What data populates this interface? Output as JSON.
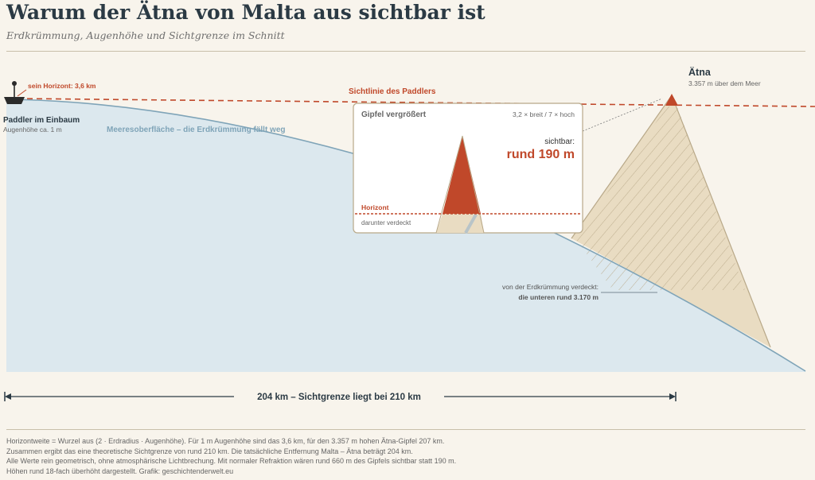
{
  "title": "Warum der Ätna von Malta aus sichtbar ist",
  "subtitle": "Erdkrümmung, Augenhöhe und Sichtgrenze im Schnitt",
  "colors": {
    "sea": "#dce8ee",
    "sea_edge": "#7fa4b8",
    "accent": "#c0482a",
    "mountain_fill": "#e9dcc2",
    "mountain_edge": "#b8a888",
    "hatch": "#b8a888",
    "text_dark": "#2b3a44",
    "text_muted": "#666666"
  },
  "observer": {
    "name": "Paddler im Einbaum",
    "height_note": "Augenhöhe ca. 1 m",
    "horizon_label": "sein Horizont: 3,6 km",
    "icon": "boat-icon"
  },
  "sea_label": "Meeresoberfläche – die Erdkrümmung fällt weg",
  "sightline_label": "Sichtlinie des Paddlers",
  "mountain": {
    "name": "Ätna",
    "elevation_note": "3.357 m über dem Meer",
    "hidden_label": "von der Erdkrümmung verdeckt:",
    "hidden_value": "die unteren rund 3.170 m"
  },
  "inset": {
    "title": "Gipfel vergrößert",
    "scale_note": "3,2 × breit / 7 × hoch",
    "visible_label": "sichtbar:",
    "visible_value": "rund 190 m",
    "horizon_label": "Horizont",
    "hidden_label": "darunter verdeckt"
  },
  "distance": {
    "label": "204 km – Sichtgrenze liegt bei 210 km"
  },
  "footnote": [
    "Horizontweite = Wurzel aus (2 · Erdradius · Augenhöhe). Für 1 m Augenhöhe sind das 3,6 km, für den 3.357 m hohen Ätna-Gipfel 207 km.",
    "Zusammen ergibt das eine theoretische Sichtgrenze von rund 210 km. Die tatsächliche Entfernung Malta – Ätna beträgt 204 km.",
    "Alle Werte rein geometrisch, ohne atmosphärische Lichtbrechung. Mit normaler Refraktion wären rund 660 m des Gipfels sichtbar statt 190 m.",
    "Höhen rund 18-fach überhöht dargestellt. Grafik: geschichtenderwelt.eu"
  ]
}
